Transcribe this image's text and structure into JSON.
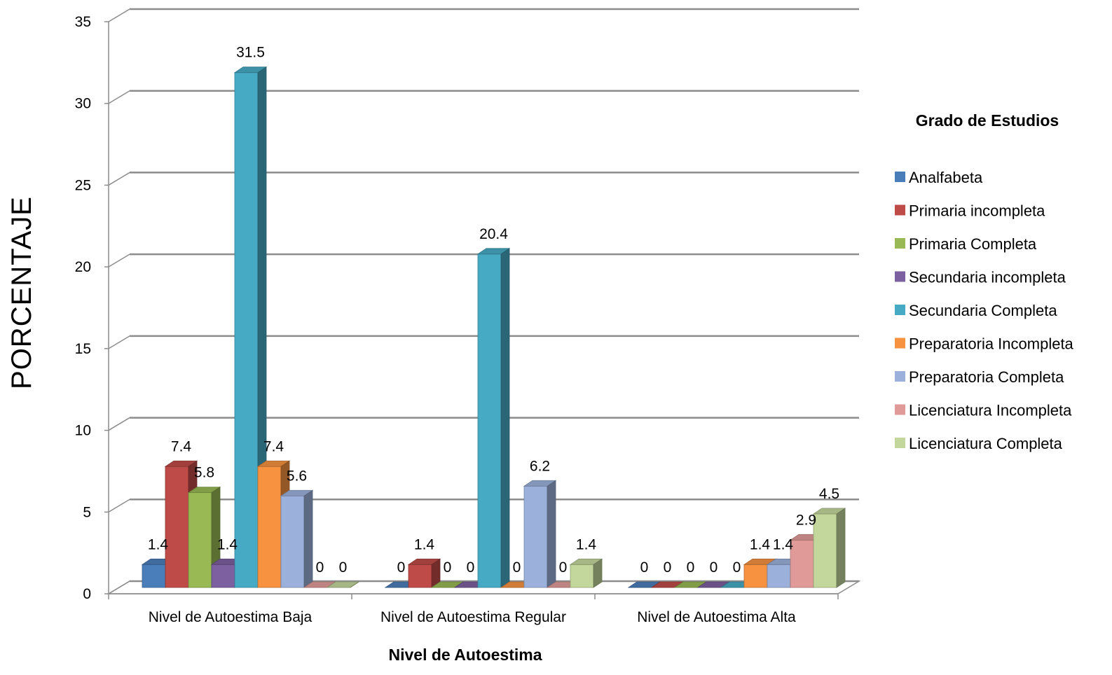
{
  "chart_data": {
    "type": "bar",
    "style": "3d-clustered-column",
    "categories": [
      "Nivel de Autoestima Baja",
      "Nivel de Autoestima Regular",
      "Nivel de Autoestima Alta"
    ],
    "xlabel": "Nivel de Autoestima",
    "ylabel": "PORCENTAJE",
    "ylim": [
      0,
      35
    ],
    "yticks": [
      0,
      5,
      10,
      15,
      20,
      25,
      30,
      35
    ],
    "grid": true,
    "legend": {
      "title": "Grado de Estudios",
      "position": "right"
    },
    "series": [
      {
        "name": "Analfabeta",
        "color": "#4A7EBB",
        "values": [
          1.4,
          0,
          0
        ],
        "labels": [
          "1.4",
          "0",
          "0"
        ]
      },
      {
        "name": "Primaria incompleta",
        "color": "#BE4B48",
        "values": [
          7.4,
          1.4,
          0
        ],
        "labels": [
          "7.4",
          "1.4",
          "0"
        ]
      },
      {
        "name": "Primaria Completa",
        "color": "#98B954",
        "values": [
          5.8,
          0,
          0
        ],
        "labels": [
          "5.8",
          "0",
          "0"
        ]
      },
      {
        "name": "Secundaria incompleta",
        "color": "#7D60A0",
        "values": [
          1.4,
          0,
          0
        ],
        "labels": [
          "1.4",
          "0",
          "0"
        ]
      },
      {
        "name": "Secundaria Completa",
        "color": "#46AAC5",
        "values": [
          31.5,
          20.4,
          0
        ],
        "labels": [
          "31.5",
          "20.4",
          "0"
        ]
      },
      {
        "name": "Preparatoria Incompleta",
        "color": "#F69240",
        "values": [
          7.4,
          0,
          1.4
        ],
        "labels": [
          "7.4",
          "0",
          "1.4"
        ]
      },
      {
        "name": "Preparatoria Completa",
        "color": "#9BB1DB",
        "values": [
          5.6,
          6.2,
          1.4
        ],
        "labels": [
          "5.6",
          "6.2",
          "1.4"
        ]
      },
      {
        "name": "Licenciatura Incompleta",
        "color": "#E09B99",
        "values": [
          0,
          0,
          2.9
        ],
        "labels": [
          "0",
          "0",
          "2.9"
        ]
      },
      {
        "name": "Licenciatura Completa",
        "color": "#C3D69B",
        "values": [
          0,
          1.4,
          4.5
        ],
        "labels": [
          "0",
          "1.4",
          "4.5"
        ]
      }
    ]
  }
}
